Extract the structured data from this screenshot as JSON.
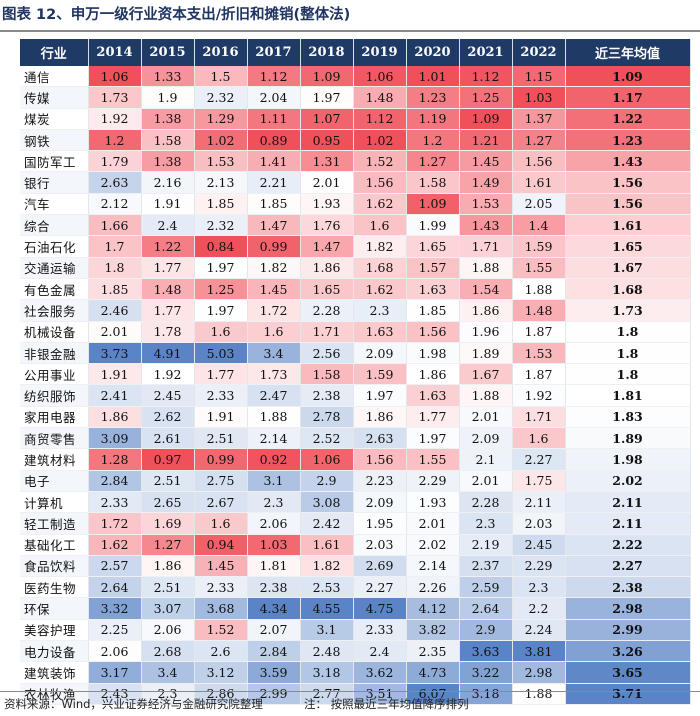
{
  "title": "图表 12、申万一级行业资本支出/折旧和摊销(整体法)",
  "footer": {
    "source": "资料来源：Wind，兴业证券经济与金融研究院整理",
    "note": "注： 按照最近三年均值降序排列"
  },
  "chart_data": {
    "type": "table",
    "columns": [
      "行业",
      "2014",
      "2015",
      "2016",
      "2017",
      "2018",
      "2019",
      "2020",
      "2021",
      "2022",
      "近三年均值"
    ],
    "rows": [
      {
        "industry": "通信",
        "values": [
          "1.06",
          "1.33",
          "1.5",
          "1.12",
          "1.09",
          "1.06",
          "1.01",
          "1.12",
          "1.15"
        ],
        "avg": "1.09"
      },
      {
        "industry": "传媒",
        "values": [
          "1.73",
          "1.9",
          "2.32",
          "2.04",
          "1.97",
          "1.48",
          "1.23",
          "1.25",
          "1.03"
        ],
        "avg": "1.17"
      },
      {
        "industry": "煤炭",
        "values": [
          "1.92",
          "1.38",
          "1.29",
          "1.11",
          "1.07",
          "1.12",
          "1.19",
          "1.09",
          "1.37"
        ],
        "avg": "1.22"
      },
      {
        "industry": "钢铁",
        "values": [
          "1.2",
          "1.58",
          "1.02",
          "0.89",
          "0.95",
          "1.02",
          "1.2",
          "1.21",
          "1.27"
        ],
        "avg": "1.23"
      },
      {
        "industry": "国防军工",
        "values": [
          "1.79",
          "1.38",
          "1.53",
          "1.41",
          "1.31",
          "1.52",
          "1.27",
          "1.45",
          "1.56"
        ],
        "avg": "1.43"
      },
      {
        "industry": "银行",
        "values": [
          "2.63",
          "2.16",
          "2.13",
          "2.21",
          "2.01",
          "1.56",
          "1.58",
          "1.49",
          "1.61"
        ],
        "avg": "1.56"
      },
      {
        "industry": "汽车",
        "values": [
          "2.12",
          "1.91",
          "1.85",
          "1.85",
          "1.93",
          "1.62",
          "1.09",
          "1.53",
          "2.05"
        ],
        "avg": "1.56"
      },
      {
        "industry": "综合",
        "values": [
          "1.66",
          "2.4",
          "2.32",
          "1.47",
          "1.76",
          "1.6",
          "1.99",
          "1.43",
          "1.4"
        ],
        "avg": "1.61"
      },
      {
        "industry": "石油石化",
        "values": [
          "1.7",
          "1.22",
          "0.84",
          "0.99",
          "1.47",
          "1.82",
          "1.65",
          "1.71",
          "1.59"
        ],
        "avg": "1.65"
      },
      {
        "industry": "交通运输",
        "values": [
          "1.8",
          "1.77",
          "1.97",
          "1.82",
          "1.86",
          "1.68",
          "1.57",
          "1.88",
          "1.55"
        ],
        "avg": "1.67"
      },
      {
        "industry": "有色金属",
        "values": [
          "1.85",
          "1.48",
          "1.25",
          "1.45",
          "1.65",
          "1.62",
          "1.63",
          "1.54",
          "1.88"
        ],
        "avg": "1.68"
      },
      {
        "industry": "社会服务",
        "values": [
          "2.46",
          "1.77",
          "1.97",
          "1.72",
          "2.28",
          "2.3",
          "1.85",
          "1.86",
          "1.48"
        ],
        "avg": "1.73"
      },
      {
        "industry": "机械设备",
        "values": [
          "2.01",
          "1.78",
          "1.6",
          "1.6",
          "1.71",
          "1.63",
          "1.56",
          "1.96",
          "1.87"
        ],
        "avg": "1.8"
      },
      {
        "industry": "非银金融",
        "values": [
          "3.73",
          "4.91",
          "5.03",
          "3.4",
          "2.56",
          "2.09",
          "1.98",
          "1.89",
          "1.53"
        ],
        "avg": "1.8"
      },
      {
        "industry": "公用事业",
        "values": [
          "1.91",
          "1.92",
          "1.77",
          "1.73",
          "1.58",
          "1.59",
          "1.86",
          "1.67",
          "1.87"
        ],
        "avg": "1.8"
      },
      {
        "industry": "纺织服饰",
        "values": [
          "2.41",
          "2.45",
          "2.33",
          "2.47",
          "2.38",
          "1.97",
          "1.63",
          "1.88",
          "1.92"
        ],
        "avg": "1.81"
      },
      {
        "industry": "家用电器",
        "values": [
          "1.86",
          "2.62",
          "1.91",
          "1.88",
          "2.78",
          "1.86",
          "1.77",
          "2.01",
          "1.71"
        ],
        "avg": "1.83"
      },
      {
        "industry": "商贸零售",
        "values": [
          "3.09",
          "2.61",
          "2.51",
          "2.14",
          "2.52",
          "2.63",
          "1.97",
          "2.09",
          "1.6"
        ],
        "avg": "1.89"
      },
      {
        "industry": "建筑材料",
        "values": [
          "1.28",
          "0.97",
          "0.99",
          "0.92",
          "1.06",
          "1.56",
          "1.55",
          "2.1",
          "2.27"
        ],
        "avg": "1.98"
      },
      {
        "industry": "电子",
        "values": [
          "2.84",
          "2.51",
          "2.75",
          "3.1",
          "2.9",
          "2.23",
          "2.29",
          "2.01",
          "1.75"
        ],
        "avg": "2.02"
      },
      {
        "industry": "计算机",
        "values": [
          "2.33",
          "2.65",
          "2.67",
          "2.3",
          "3.08",
          "2.09",
          "1.93",
          "2.28",
          "2.11"
        ],
        "avg": "2.11"
      },
      {
        "industry": "轻工制造",
        "values": [
          "1.72",
          "1.69",
          "1.6",
          "2.06",
          "2.42",
          "1.95",
          "2.01",
          "2.3",
          "2.03"
        ],
        "avg": "2.11"
      },
      {
        "industry": "基础化工",
        "values": [
          "1.62",
          "1.27",
          "0.94",
          "1.03",
          "1.61",
          "2.03",
          "2.02",
          "2.19",
          "2.45"
        ],
        "avg": "2.22"
      },
      {
        "industry": "食品饮料",
        "values": [
          "2.57",
          "1.86",
          "1.45",
          "1.81",
          "1.82",
          "2.69",
          "2.14",
          "2.37",
          "2.29"
        ],
        "avg": "2.27"
      },
      {
        "industry": "医药生物",
        "values": [
          "2.64",
          "2.51",
          "2.33",
          "2.38",
          "2.53",
          "2.27",
          "2.26",
          "2.59",
          "2.3"
        ],
        "avg": "2.38"
      },
      {
        "industry": "环保",
        "values": [
          "3.32",
          "3.07",
          "3.68",
          "4.34",
          "4.55",
          "4.75",
          "4.12",
          "2.64",
          "2.2"
        ],
        "avg": "2.98"
      },
      {
        "industry": "美容护理",
        "values": [
          "2.25",
          "2.06",
          "1.52",
          "2.07",
          "3.1",
          "2.33",
          "3.82",
          "2.9",
          "2.24"
        ],
        "avg": "2.99"
      },
      {
        "industry": "电力设备",
        "values": [
          "2.06",
          "2.68",
          "2.6",
          "2.84",
          "2.48",
          "2.4",
          "2.35",
          "3.63",
          "3.81"
        ],
        "avg": "3.26"
      },
      {
        "industry": "建筑装饰",
        "values": [
          "3.17",
          "3.4",
          "3.12",
          "3.59",
          "3.18",
          "3.62",
          "4.73",
          "3.22",
          "2.98"
        ],
        "avg": "3.65"
      },
      {
        "industry": "农林牧渔",
        "values": [
          "2.43",
          "2.3",
          "2.86",
          "2.99",
          "2.77",
          "3.51",
          "6.07",
          "3.18",
          "1.88"
        ],
        "avg": "3.71"
      }
    ],
    "color_scale": {
      "low": "#f0505a",
      "mid": "#ffffff",
      "high": "#5a84c6"
    }
  }
}
